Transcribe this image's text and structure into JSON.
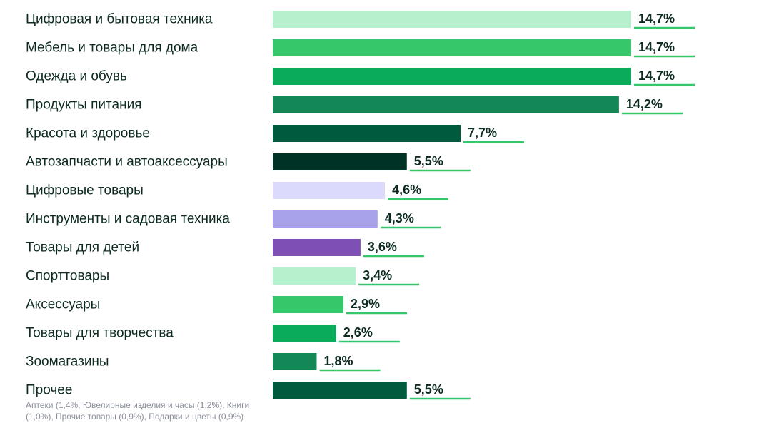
{
  "chart_data": {
    "type": "bar",
    "orientation": "horizontal",
    "categories": [
      "Цифровая и бытовая техника",
      "Мебель и товары для дома",
      "Одежда и обувь",
      "Продукты питания",
      "Красота и здоровье",
      "Автозапчасти и автоаксессуары",
      "Цифровые товары",
      "Инструменты и садовая техника",
      "Товары для детей",
      "Спорттовары",
      "Аксессуары",
      "Товары для творчества",
      "Зоомагазины",
      "Прочее"
    ],
    "values": [
      14.7,
      14.7,
      14.7,
      14.2,
      7.7,
      5.5,
      4.6,
      4.3,
      3.6,
      3.4,
      2.9,
      2.6,
      1.8,
      5.5
    ],
    "value_labels": [
      "14,7%",
      "14,7%",
      "14,7%",
      "14,2%",
      "7,7%",
      "5,5%",
      "4,6%",
      "4,3%",
      "3,6%",
      "3,4%",
      "2,9%",
      "2,6%",
      "1,8%",
      "5,5%"
    ],
    "colors": [
      "#b7f0cc",
      "#36c76a",
      "#0aab59",
      "#138755",
      "#005a3e",
      "#003325",
      "#dcdafc",
      "#a7a2ea",
      "#7e4fb4",
      "#b7f0cc",
      "#36c76a",
      "#0aab59",
      "#138755",
      "#005a3e"
    ],
    "underline_color": "#36c76a",
    "label_color": "#0c2a1f",
    "note_lines": [
      "Аптеки (1,4%, Ювелирные изделия и часы (1,2%), Книги",
      "(1,0%), Прочие товары (0,9%), Подарки и цветы (0,9%)"
    ],
    "note_color": "#8a8f99",
    "title": "",
    "xlabel": "",
    "ylabel": "",
    "grid": false,
    "legend": "none"
  }
}
